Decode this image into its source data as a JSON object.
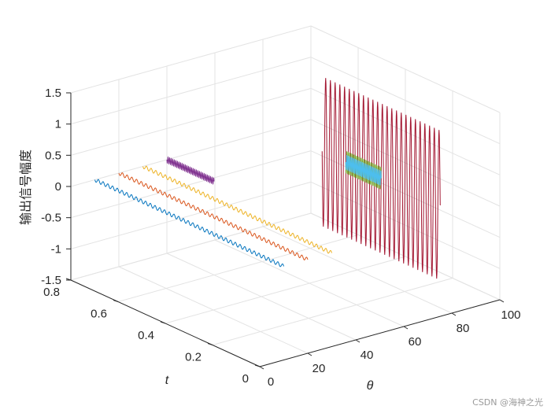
{
  "chart_data": {
    "type": "line3d",
    "title": "",
    "xlabel": "θ",
    "ylabel": "t",
    "zlabel": "输出信号幅度",
    "xlim": [
      0,
      100
    ],
    "ylim": [
      0,
      0.8
    ],
    "zlim": [
      -1.5,
      1.5
    ],
    "x_ticks": [
      "0",
      "20",
      "40",
      "60",
      "80",
      "100"
    ],
    "y_ticks": [
      "0",
      "0.2",
      "0.4",
      "0.6",
      "0.8"
    ],
    "z_ticks": [
      "-1.5",
      "-1",
      "-0.5",
      "0",
      "0.5",
      "1",
      "1.5"
    ],
    "grid": true,
    "series": [
      {
        "theta": 10,
        "t_range": [
          0,
          0.8
        ],
        "amplitude": 0.03,
        "cycles": 40,
        "color": "#0072BD"
      },
      {
        "theta": 20,
        "t_range": [
          0,
          0.8
        ],
        "amplitude": 0.03,
        "cycles": 40,
        "color": "#D95319"
      },
      {
        "theta": 30,
        "t_range": [
          0,
          0.8
        ],
        "amplitude": 0.03,
        "cycles": 40,
        "color": "#EDB120"
      },
      {
        "theta": 40,
        "t_range": [
          0.6,
          0.8
        ],
        "amplitude": 0.05,
        "cycles": 30,
        "color": "#7E2F8E"
      },
      {
        "theta": 85,
        "t_range": [
          0.1,
          0.6
        ],
        "amplitude": 1.2,
        "cycles": 25,
        "color": "#A2142F"
      },
      {
        "theta": 85,
        "t_range": [
          0.35,
          0.5
        ],
        "amplitude": 0.18,
        "cycles": 25,
        "color": "#77AC30"
      },
      {
        "theta": 85,
        "t_range": [
          0.35,
          0.5
        ],
        "amplitude": 0.12,
        "cycles": 25,
        "color": "#4DBEEE"
      }
    ]
  },
  "watermark": "CSDN @海神之光"
}
